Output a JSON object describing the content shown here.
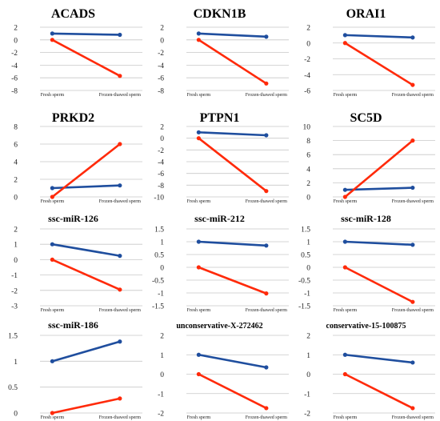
{
  "colors": {
    "series_a": "#1f4e9e",
    "series_b": "#ff2a0a",
    "grid": "#c8c8c8"
  },
  "chart_data": [
    {
      "type": "line",
      "title": "ACADS",
      "categories": [
        "Fresh sperm",
        "Frozen-thawed sperm"
      ],
      "series": [
        {
          "values": [
            1,
            0.8
          ]
        },
        {
          "values": [
            0,
            -5.7
          ]
        }
      ],
      "ylim": [
        -8,
        2
      ],
      "yticks": [
        "2",
        "0",
        "-2",
        "-4",
        "-6",
        "-8"
      ],
      "grid": true
    },
    {
      "type": "line",
      "title": "CDKN1B",
      "categories": [
        "Fresh sperm",
        "Frozen-thawed sperm"
      ],
      "series": [
        {
          "values": [
            1,
            0.5
          ]
        },
        {
          "values": [
            0,
            -6.9
          ]
        }
      ],
      "ylim": [
        -8,
        2
      ],
      "yticks": [
        "2",
        "0",
        "-2",
        "-4",
        "-6",
        "-8"
      ],
      "grid": true
    },
    {
      "type": "line",
      "title": "ORAI1",
      "categories": [
        "Fresh sperm",
        "Frozen-thawed sperm"
      ],
      "series": [
        {
          "values": [
            1,
            0.7
          ]
        },
        {
          "values": [
            0,
            -5.3
          ]
        }
      ],
      "ylim": [
        -6,
        2
      ],
      "yticks": [
        "2",
        "0",
        "-2",
        "-4",
        "-6"
      ],
      "grid": true
    },
    {
      "type": "line",
      "title": "PRKD2",
      "categories": [
        "Fresh sperm",
        "Frozen-thawed sperm"
      ],
      "series": [
        {
          "values": [
            1,
            1.3
          ]
        },
        {
          "values": [
            0,
            6
          ]
        }
      ],
      "ylim": [
        0,
        8
      ],
      "yticks": [
        "8",
        "6",
        "4",
        "2",
        "0"
      ],
      "grid": true
    },
    {
      "type": "line",
      "title": "PTPN1",
      "categories": [
        "Fresh sperm",
        "Frozen-thawed sperm"
      ],
      "series": [
        {
          "values": [
            1,
            0.5
          ]
        },
        {
          "values": [
            0,
            -9
          ]
        }
      ],
      "ylim": [
        -10,
        2
      ],
      "yticks": [
        "2",
        "0",
        "-2",
        "-4",
        "-6",
        "-8",
        "-10"
      ],
      "grid": true
    },
    {
      "type": "line",
      "title": "SC5D",
      "categories": [
        "Fresh sperm",
        "Frozen-thawed sperm"
      ],
      "series": [
        {
          "values": [
            1,
            1.3
          ]
        },
        {
          "values": [
            0,
            8
          ]
        }
      ],
      "ylim": [
        0,
        10
      ],
      "yticks": [
        "10",
        "8",
        "6",
        "4",
        "2",
        "0"
      ],
      "grid": true
    },
    {
      "type": "line",
      "title": "ssc-miR-126",
      "categories": [
        "Fresh sperm",
        "Frozen-thawed sperm"
      ],
      "series": [
        {
          "values": [
            1,
            0.25
          ]
        },
        {
          "values": [
            0,
            -1.95
          ]
        }
      ],
      "ylim": [
        -3,
        2
      ],
      "yticks": [
        "2",
        "1",
        "0",
        "-1",
        "-2",
        "-3"
      ],
      "grid": true
    },
    {
      "type": "line",
      "title": "ssc-miR-212",
      "categories": [
        "Fresh sperm",
        "Frozen-thawed sperm"
      ],
      "series": [
        {
          "values": [
            1,
            0.85
          ]
        },
        {
          "values": [
            0,
            -1.02
          ]
        }
      ],
      "ylim": [
        -1.5,
        1.5
      ],
      "yticks": [
        "1.5",
        "1",
        "0.5",
        "0",
        "-0.5",
        "-1",
        "-1.5"
      ],
      "grid": true
    },
    {
      "type": "line",
      "title": "ssc-miR-128",
      "categories": [
        "Fresh sperm",
        "Frozen-thawed sperm"
      ],
      "series": [
        {
          "values": [
            1,
            0.88
          ]
        },
        {
          "values": [
            0,
            -1.35
          ]
        }
      ],
      "ylim": [
        -1.5,
        1.5
      ],
      "yticks": [
        "1.5",
        "1",
        "0.5",
        "0",
        "-0.5",
        "-1",
        "-1.5"
      ],
      "grid": true
    },
    {
      "type": "line",
      "title": "ssc-miR-186",
      "categories": [
        "Fresh sperm",
        "Frozen-thawed sperm"
      ],
      "series": [
        {
          "values": [
            1,
            1.38
          ]
        },
        {
          "values": [
            0,
            0.28
          ]
        }
      ],
      "ylim": [
        0,
        1.5
      ],
      "yticks": [
        "1.5",
        "1",
        "0.5",
        "0"
      ],
      "grid": true
    },
    {
      "type": "line",
      "title": "unconservative-X-272462",
      "categories": [
        "Fresh sperm",
        "Frozen-thawed sperm"
      ],
      "series": [
        {
          "values": [
            1,
            0.35
          ]
        },
        {
          "values": [
            0,
            -1.75
          ]
        }
      ],
      "ylim": [
        -2,
        2
      ],
      "yticks": [
        "2",
        "1",
        "0",
        "-1",
        "-2"
      ],
      "grid": true
    },
    {
      "type": "line",
      "title": "conservative-15-100875",
      "categories": [
        "Fresh sperm",
        "Frozen-thawed sperm"
      ],
      "series": [
        {
          "values": [
            1,
            0.6
          ]
        },
        {
          "values": [
            0,
            -1.75
          ]
        }
      ],
      "ylim": [
        -2,
        2
      ],
      "yticks": [
        "2",
        "1",
        "0",
        "-1",
        "-2"
      ],
      "grid": true
    }
  ]
}
